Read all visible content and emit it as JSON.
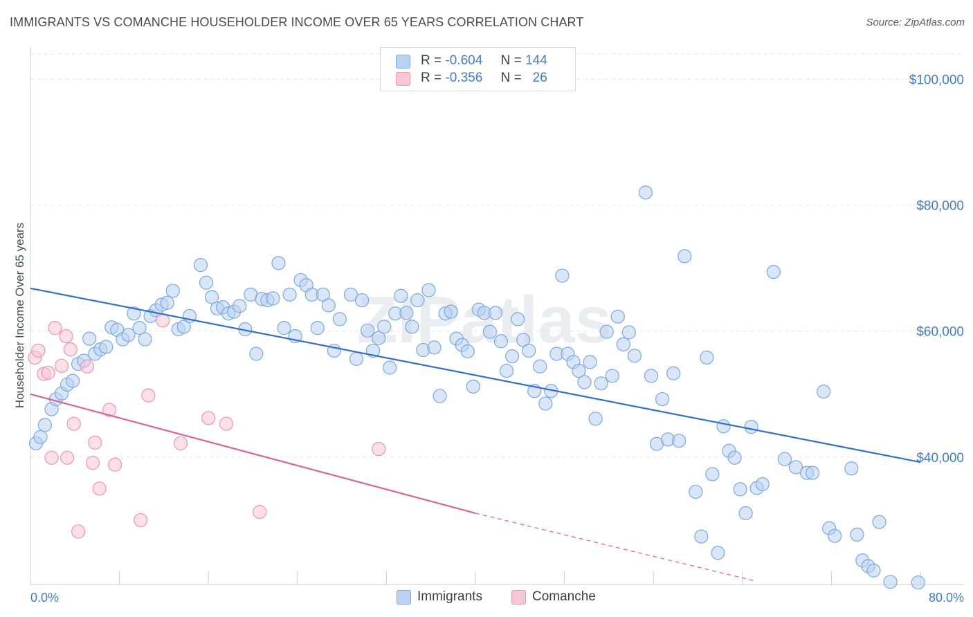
{
  "title": "IMMIGRANTS VS COMANCHE HOUSEHOLDER INCOME OVER 65 YEARS CORRELATION CHART",
  "source": "Source: ZipAtlas.com",
  "watermark": "ZIPatlas",
  "legend": {
    "rows": [
      {
        "r_label": "R =",
        "r_value": "-0.604",
        "n_label": "N =",
        "n_value": "144"
      },
      {
        "r_label": "R =",
        "r_value": "-0.356",
        "n_label": "N =",
        "n_value": "26"
      }
    ]
  },
  "bottom_legend": [
    "Immigrants",
    "Comanche"
  ],
  "colors": {
    "immigrants_fill": "#b8d2f3",
    "immigrants_stroke": "#7aa8e0",
    "immigrants_line": "#2e6fd0",
    "comanche_fill": "#f8c6d6",
    "comanche_stroke": "#ee95b1",
    "comanche_line": "#e0608e",
    "tick_label": "#3f7bd0",
    "grid": "#e3e6ea"
  },
  "chart_data": {
    "type": "scatter",
    "title": "IMMIGRANTS VS COMANCHE HOUSEHOLDER INCOME OVER 65 YEARS CORRELATION CHART",
    "xlabel": "",
    "ylabel": "Householder Income Over 65 years",
    "xlim": [
      0,
      80
    ],
    "ylim": [
      20000,
      104000
    ],
    "x_tick_labels": [
      "0.0%",
      "80.0%"
    ],
    "y_ticks": [
      40000,
      60000,
      80000,
      100000
    ],
    "y_tick_labels": [
      "$40,000",
      "$60,000",
      "$80,000",
      "$100,000"
    ],
    "grid": true,
    "legend_position": "top-center",
    "series": [
      {
        "name": "Immigrants",
        "r": -0.604,
        "n": 144,
        "trend": {
          "x": [
            0,
            80
          ],
          "y": [
            66800,
            39200
          ]
        },
        "points": [
          [
            0.5,
            42200
          ],
          [
            0.9,
            43200
          ],
          [
            1.3,
            45100
          ],
          [
            1.9,
            47600
          ],
          [
            2.3,
            49200
          ],
          [
            2.8,
            50100
          ],
          [
            3.3,
            51500
          ],
          [
            3.8,
            52100
          ],
          [
            4.3,
            54800
          ],
          [
            4.8,
            55300
          ],
          [
            5.3,
            58800
          ],
          [
            5.8,
            56400
          ],
          [
            6.3,
            57100
          ],
          [
            6.8,
            57500
          ],
          [
            7.3,
            60600
          ],
          [
            7.8,
            60200
          ],
          [
            8.3,
            58700
          ],
          [
            8.8,
            59400
          ],
          [
            9.3,
            62800
          ],
          [
            9.8,
            60500
          ],
          [
            10.3,
            58700
          ],
          [
            10.8,
            62400
          ],
          [
            11.3,
            63300
          ],
          [
            11.8,
            64200
          ],
          [
            12.3,
            64500
          ],
          [
            12.8,
            66400
          ],
          [
            13.3,
            60300
          ],
          [
            13.8,
            60700
          ],
          [
            14.3,
            62400
          ],
          [
            15.3,
            70500
          ],
          [
            15.8,
            67700
          ],
          [
            16.3,
            65400
          ],
          [
            16.8,
            63600
          ],
          [
            17.3,
            63800
          ],
          [
            17.8,
            62800
          ],
          [
            18.3,
            63100
          ],
          [
            18.8,
            64000
          ],
          [
            19.3,
            60300
          ],
          [
            19.8,
            65800
          ],
          [
            20.3,
            56400
          ],
          [
            20.8,
            65100
          ],
          [
            21.3,
            64900
          ],
          [
            21.8,
            65200
          ],
          [
            22.3,
            70800
          ],
          [
            22.8,
            60500
          ],
          [
            23.3,
            65800
          ],
          [
            23.8,
            59200
          ],
          [
            24.3,
            68100
          ],
          [
            24.8,
            67300
          ],
          [
            25.3,
            65800
          ],
          [
            25.8,
            60500
          ],
          [
            26.3,
            65800
          ],
          [
            26.8,
            64100
          ],
          [
            27.3,
            56900
          ],
          [
            27.8,
            61900
          ],
          [
            28.8,
            65800
          ],
          [
            29.3,
            55600
          ],
          [
            29.8,
            64900
          ],
          [
            30.3,
            60100
          ],
          [
            30.8,
            56900
          ],
          [
            31.3,
            58900
          ],
          [
            31.8,
            60700
          ],
          [
            32.3,
            54200
          ],
          [
            32.8,
            62800
          ],
          [
            33.3,
            65600
          ],
          [
            33.8,
            62900
          ],
          [
            34.3,
            60700
          ],
          [
            34.8,
            64900
          ],
          [
            35.3,
            57000
          ],
          [
            35.8,
            66500
          ],
          [
            36.3,
            57400
          ],
          [
            36.8,
            49700
          ],
          [
            37.3,
            62800
          ],
          [
            37.8,
            63100
          ],
          [
            38.3,
            58800
          ],
          [
            38.8,
            57800
          ],
          [
            39.3,
            56800
          ],
          [
            39.8,
            51200
          ],
          [
            40.3,
            63400
          ],
          [
            40.8,
            62900
          ],
          [
            41.3,
            59900
          ],
          [
            41.8,
            62900
          ],
          [
            42.3,
            58400
          ],
          [
            42.8,
            53700
          ],
          [
            43.3,
            56000
          ],
          [
            43.8,
            61900
          ],
          [
            44.3,
            58600
          ],
          [
            44.8,
            56900
          ],
          [
            45.3,
            50500
          ],
          [
            45.8,
            54400
          ],
          [
            46.3,
            48500
          ],
          [
            46.8,
            50500
          ],
          [
            47.3,
            56400
          ],
          [
            47.8,
            68800
          ],
          [
            48.3,
            56400
          ],
          [
            48.8,
            55100
          ],
          [
            49.3,
            53700
          ],
          [
            49.8,
            51900
          ],
          [
            50.3,
            55100
          ],
          [
            50.8,
            46100
          ],
          [
            51.3,
            51700
          ],
          [
            51.8,
            59900
          ],
          [
            52.3,
            52900
          ],
          [
            52.8,
            62300
          ],
          [
            53.3,
            57900
          ],
          [
            53.8,
            59800
          ],
          [
            54.3,
            56100
          ],
          [
            55.3,
            82000
          ],
          [
            55.8,
            52900
          ],
          [
            56.3,
            42100
          ],
          [
            56.8,
            49200
          ],
          [
            57.3,
            42800
          ],
          [
            57.8,
            53300
          ],
          [
            58.3,
            42600
          ],
          [
            58.8,
            71900
          ],
          [
            59.8,
            34500
          ],
          [
            60.3,
            27400
          ],
          [
            60.8,
            55800
          ],
          [
            61.3,
            37300
          ],
          [
            61.8,
            24800
          ],
          [
            62.3,
            44900
          ],
          [
            62.8,
            41000
          ],
          [
            63.3,
            39900
          ],
          [
            63.8,
            34900
          ],
          [
            64.3,
            31100
          ],
          [
            64.8,
            44800
          ],
          [
            65.3,
            35100
          ],
          [
            65.8,
            35700
          ],
          [
            66.8,
            69400
          ],
          [
            67.8,
            39700
          ],
          [
            68.8,
            38400
          ],
          [
            69.8,
            37500
          ],
          [
            70.3,
            37500
          ],
          [
            71.3,
            50400
          ],
          [
            71.8,
            28700
          ],
          [
            72.3,
            27500
          ],
          [
            73.8,
            38200
          ],
          [
            74.3,
            27700
          ],
          [
            74.8,
            23600
          ],
          [
            75.3,
            22700
          ],
          [
            75.8,
            22000
          ],
          [
            76.3,
            29700
          ],
          [
            77.3,
            20200
          ],
          [
            79.8,
            20100
          ]
        ]
      },
      {
        "name": "Comanche",
        "r": -0.356,
        "n": 26,
        "trend": {
          "x": [
            0,
            40
          ],
          "y": [
            50000,
            31100
          ]
        },
        "trend_dashed": {
          "x": [
            40,
            65
          ],
          "y": [
            31100,
            20400
          ]
        },
        "points": [
          [
            0.4,
            55800
          ],
          [
            0.7,
            56900
          ],
          [
            1.2,
            53200
          ],
          [
            1.6,
            53400
          ],
          [
            1.9,
            39900
          ],
          [
            2.2,
            60500
          ],
          [
            2.8,
            54500
          ],
          [
            3.2,
            59200
          ],
          [
            3.3,
            39900
          ],
          [
            3.6,
            57100
          ],
          [
            3.9,
            45300
          ],
          [
            4.3,
            28200
          ],
          [
            5.1,
            54400
          ],
          [
            5.6,
            39100
          ],
          [
            5.8,
            42300
          ],
          [
            6.2,
            35000
          ],
          [
            7.1,
            47500
          ],
          [
            7.6,
            38800
          ],
          [
            9.9,
            30000
          ],
          [
            10.6,
            49800
          ],
          [
            11.9,
            61700
          ],
          [
            13.5,
            42200
          ],
          [
            16.0,
            46200
          ],
          [
            17.6,
            45300
          ],
          [
            20.6,
            31300
          ],
          [
            31.3,
            41300
          ]
        ]
      }
    ]
  }
}
